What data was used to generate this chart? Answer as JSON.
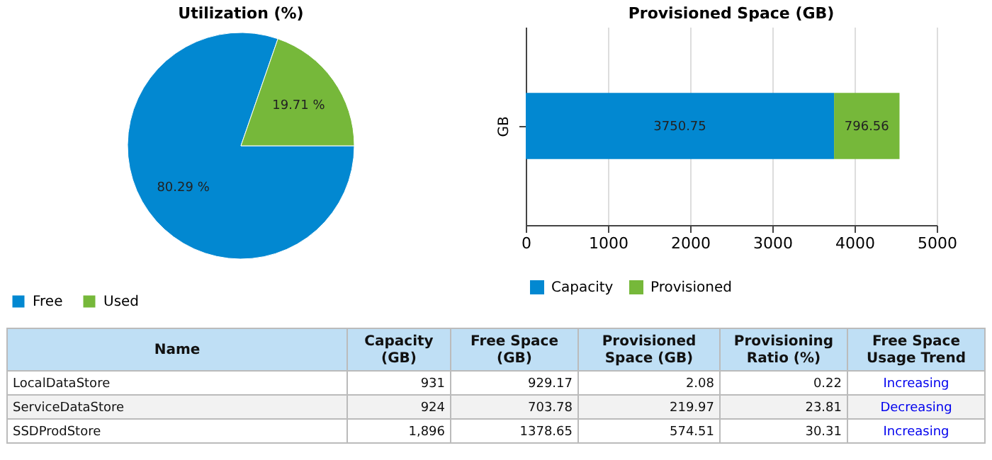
{
  "chart_data": [
    {
      "type": "pie",
      "title": "Utilization (%)",
      "categories": [
        "Free",
        "Used"
      ],
      "values": [
        80.29,
        19.71
      ],
      "colors": [
        "#0288d1",
        "#76b83a"
      ],
      "value_labels": [
        "80.29 %",
        "19.71 %"
      ],
      "legend": "bottom"
    },
    {
      "type": "bar",
      "title": "Provisioned Space (GB)",
      "orientation": "horizontal",
      "stacked": true,
      "categories": [
        null
      ],
      "ylabel": "GB",
      "series": [
        {
          "name": "Capacity",
          "color": "#0288d1",
          "values": [
            3750.75
          ]
        },
        {
          "name": "Provisioned",
          "color": "#76b83a",
          "values": [
            796.56
          ]
        }
      ],
      "xlim": [
        0,
        5000
      ],
      "xticks": [
        0,
        1000,
        2000,
        3000,
        4000,
        5000
      ],
      "grid": "x",
      "legend": "bottom",
      "data_labels": true
    },
    {
      "type": "other",
      "categories": [
        "Name",
        "Capacity (GB)",
        "Free Space (GB)",
        "Provisioned Space (GB)",
        "Provisioning Ratio (%)",
        "Free Space Usage Trend"
      ],
      "y_categories": [
        "LocalDataStore",
        "ServiceDataStore",
        "SSDProdStore"
      ],
      "cell_labels": [
        [
          "931",
          "929.17",
          "2.08",
          "0.22",
          "Increasing"
        ],
        [
          "924",
          "703.78",
          "219.97",
          "23.81",
          "Decreasing"
        ],
        [
          "1,896",
          "1378.65",
          "574.51",
          "30.31",
          "Increasing"
        ]
      ]
    }
  ]
}
